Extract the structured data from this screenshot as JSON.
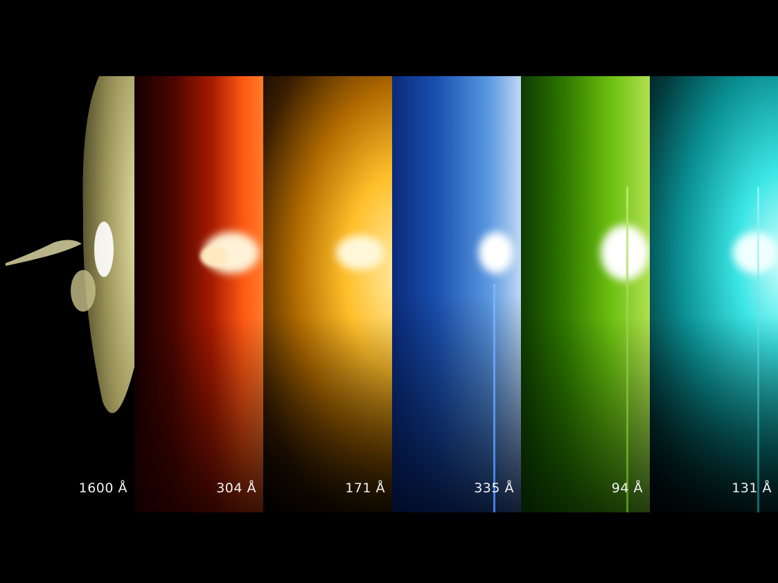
{
  "panels": [
    {
      "label": "1600 Å",
      "color": "#b8b070"
    },
    {
      "label": "304 Å",
      "color": "#ff4a12"
    },
    {
      "label": "171 Å",
      "color": "#ffb21a"
    },
    {
      "label": "335 Å",
      "color": "#2f7fd8"
    },
    {
      "label": "94 Å",
      "color": "#7fd11a"
    },
    {
      "label": "131 Å",
      "color": "#25e0e0"
    }
  ]
}
